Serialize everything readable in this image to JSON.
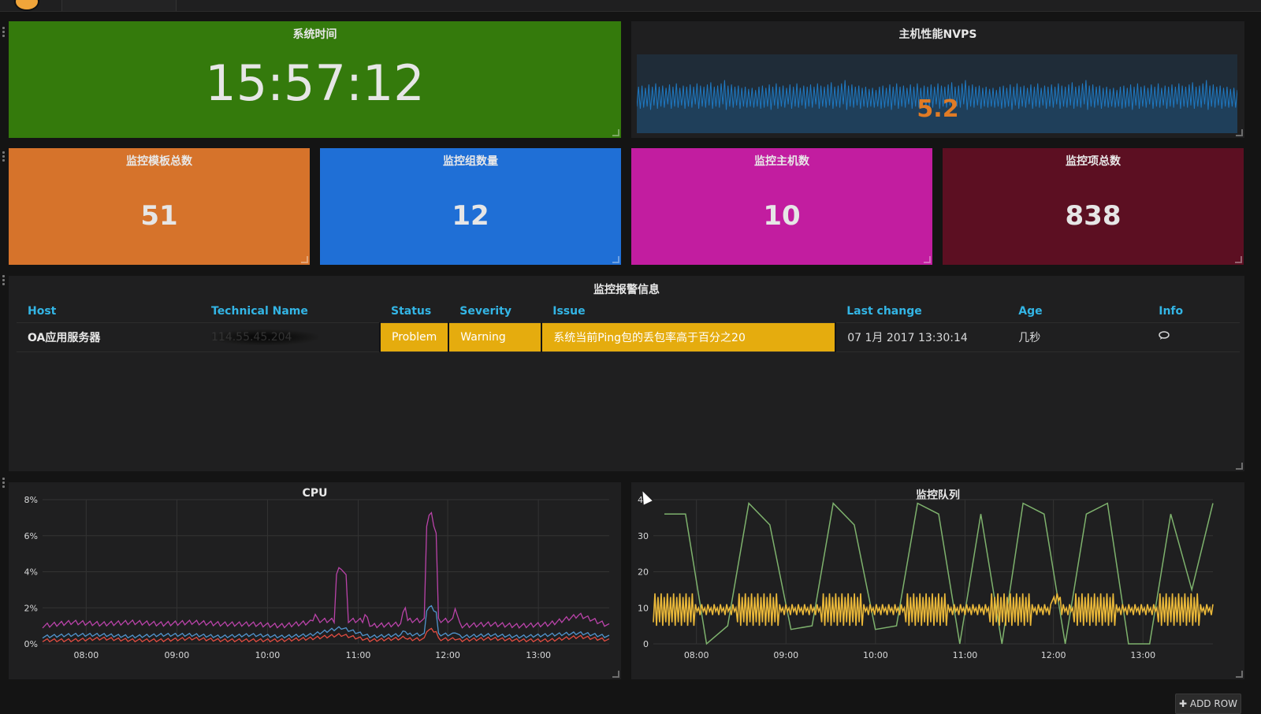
{
  "topbar": {
    "tab_label": ""
  },
  "clock": {
    "title": "系统时间",
    "time": "15:57:12",
    "color": "#347a0c"
  },
  "nvps": {
    "title": "主机性能NVPS",
    "value": "5.2",
    "value_color": "#e07b25",
    "spark_color": "#1f78c1",
    "spark": [
      5.0,
      5.6,
      4.8,
      5.7,
      4.9,
      5.5,
      5.0,
      5.8,
      4.7,
      5.6,
      5.1,
      5.9,
      4.8,
      5.6,
      5.0,
      5.7,
      4.9,
      5.5,
      5.2,
      5.8,
      4.8,
      5.6,
      5.0,
      5.9,
      4.9,
      5.5,
      5.1,
      5.7,
      4.8,
      5.6,
      5.0,
      5.8,
      4.9,
      5.6,
      5.2,
      5.9,
      4.8,
      5.7,
      5.0,
      5.6,
      4.9,
      5.8,
      5.1,
      6.0,
      4.8,
      5.6,
      5.0,
      5.7,
      4.9,
      5.9,
      5.2,
      6.2,
      4.7,
      5.7,
      5.0,
      5.8,
      4.9,
      5.6,
      5.1,
      5.7,
      4.8,
      5.5,
      5.0,
      5.6,
      4.9,
      5.4,
      5.0,
      5.5,
      4.9,
      5.3
    ]
  },
  "stats": [
    {
      "title": "监控模板总数",
      "value": "51",
      "color": "#d6732b"
    },
    {
      "title": "监控组数量",
      "value": "12",
      "color": "#1f6fd6"
    },
    {
      "title": "监控主机数",
      "value": "10",
      "color": "#c21da0"
    },
    {
      "title": "监控项总数",
      "value": "838",
      "color": "#5c0f22"
    }
  ],
  "alerts": {
    "title": "监控报警信息",
    "columns": [
      "Host",
      "Technical Name",
      "Status",
      "Severity",
      "Issue",
      "Last change",
      "Age",
      "Info"
    ],
    "rows": [
      {
        "host": "OA应用服务器",
        "technical_name": "114.55.45.204",
        "status": "Problem",
        "severity": "Warning",
        "issue": "系统当前Ping包的丢包率高于百分之20",
        "last_change": "07 1月 2017 13:30:14",
        "age": "几秒",
        "info_icon": "comment-icon"
      }
    ],
    "warning_color": "#e5ac0e"
  },
  "cpu_chart": {
    "title": "CPU",
    "chart_data": {
      "type": "line",
      "x": [
        "07:30",
        "08:00",
        "08:30",
        "09:00",
        "09:30",
        "10:00",
        "10:30",
        "11:00",
        "11:30",
        "12:00",
        "12:05",
        "12:10",
        "12:15",
        "12:20",
        "12:25",
        "12:30",
        "12:35",
        "12:40",
        "13:00",
        "13:30"
      ],
      "xticks": [
        "08:00",
        "09:00",
        "10:00",
        "11:00",
        "12:00",
        "13:00"
      ],
      "yticks": [
        "0%",
        "2%",
        "4%",
        "6%",
        "8%"
      ],
      "ylim": [
        0,
        8
      ],
      "series": [
        {
          "color": "#ba43a9",
          "values": [
            1.0,
            1.2,
            1.1,
            1.2,
            1.1,
            1.2,
            1.1,
            1.1,
            1.0,
            1.2,
            4.3,
            1.0,
            1.1,
            7.4,
            1.0,
            1.1,
            1.0,
            1.1,
            1.6,
            1.0
          ]
        },
        {
          "color": "#5195ce",
          "values": [
            0.4,
            0.5,
            0.5,
            0.4,
            0.5,
            0.5,
            0.4,
            0.5,
            0.4,
            0.5,
            0.9,
            0.4,
            0.5,
            2.1,
            0.4,
            0.5,
            0.4,
            0.5,
            0.6,
            0.4
          ]
        },
        {
          "color": "#e24d42",
          "values": [
            0.2,
            0.2,
            0.3,
            0.2,
            0.2,
            0.3,
            0.2,
            0.2,
            0.2,
            0.3,
            0.5,
            0.2,
            0.3,
            0.8,
            0.2,
            0.3,
            0.2,
            0.2,
            0.4,
            0.2
          ]
        }
      ]
    }
  },
  "queue_chart": {
    "title": "监控队列",
    "chart_data": {
      "type": "line",
      "xticks": [
        "08:00",
        "09:00",
        "10:00",
        "11:00",
        "12:00",
        "13:00"
      ],
      "yticks": [
        "0",
        "10",
        "20",
        "30",
        "40"
      ],
      "ylim": [
        0,
        40
      ],
      "series": [
        {
          "color": "#7eb26d",
          "values": [
            36,
            36,
            0,
            5,
            39,
            33,
            4,
            5,
            39,
            33,
            4,
            5,
            39,
            36,
            0,
            36,
            0,
            39,
            36,
            0,
            36,
            39,
            0,
            0,
            36,
            15,
            39
          ]
        },
        {
          "color": "#eab839",
          "values": [
            9,
            12,
            8,
            11,
            9,
            12,
            8,
            11,
            9,
            12,
            8,
            11,
            9,
            12,
            8,
            11,
            9,
            12,
            8,
            11,
            9,
            12,
            8,
            11,
            9,
            12,
            8
          ]
        }
      ]
    }
  },
  "footer": {
    "add_row": "✚ ADD ROW"
  }
}
